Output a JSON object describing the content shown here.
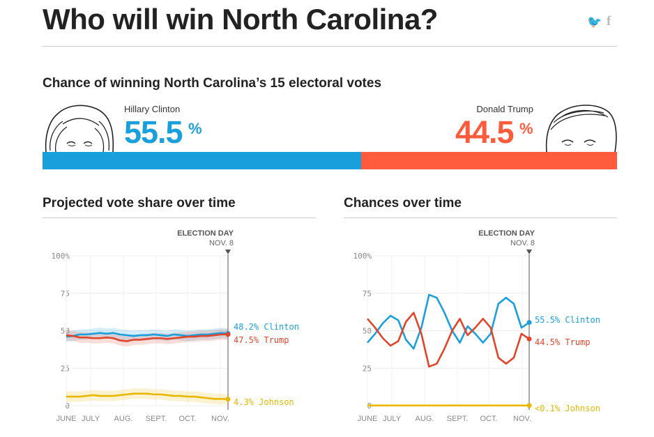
{
  "header": {
    "title": "Who will win North Carolina?",
    "twitter_glyph": "🐦",
    "facebook_glyph": "f"
  },
  "summary": {
    "heading": "Chance of winning North Carolina’s 15 electoral votes",
    "left": {
      "name": "Hillary Clinton",
      "value": "55.5",
      "unit": "%",
      "share": 0.555,
      "color": "#1a9fdd"
    },
    "right": {
      "name": "Donald Trump",
      "value": "44.5",
      "unit": "%",
      "share": 0.445,
      "color": "#ff5b3c"
    }
  },
  "colors": {
    "clinton": "#1a9fdd",
    "trump": "#e0452a",
    "johnson": "#e9b700",
    "grid": "#e8e8e8",
    "axis": "#888"
  },
  "chart_data": [
    {
      "type": "line",
      "title": "Projected vote share over time",
      "election_label": "ELECTION DAY",
      "election_date": "NOV. 8",
      "x_labels": [
        "JUNE",
        "JULY",
        "AUG.",
        "SEPT.",
        "OCT.",
        "NOV."
      ],
      "y_ticks": [
        "100%",
        "75",
        "50",
        "25",
        "0"
      ],
      "ylim": [
        0,
        100
      ],
      "series": [
        {
          "name": "Clinton",
          "color": "#1a9fdd",
          "end_label": "48.2% Clinton",
          "values": [
            46,
            46.5,
            47.5,
            47.5,
            48,
            48.5,
            48,
            48.5,
            47.5,
            47,
            46.5,
            47,
            47,
            47.5,
            47,
            46.5,
            47.5,
            47,
            46.5,
            47,
            47.5,
            47.5,
            48,
            48.5,
            48.2
          ]
        },
        {
          "name": "Trump",
          "color": "#e0452a",
          "end_label": "47.5% Trump",
          "values": [
            47,
            46.5,
            45.5,
            45.5,
            45,
            45,
            45.5,
            45,
            43.5,
            43,
            44,
            44,
            44.5,
            45,
            45,
            44.5,
            45,
            45.5,
            46,
            46,
            46.5,
            46.5,
            47,
            47.5,
            47.5
          ]
        },
        {
          "name": "Johnson",
          "color": "#e9b700",
          "end_label": "4.3% Johnson",
          "values": [
            6,
            6,
            6,
            6.5,
            7,
            6.5,
            6.5,
            6.5,
            7,
            7.5,
            8,
            8,
            8,
            7.5,
            7.5,
            7,
            6.5,
            6.5,
            6,
            6,
            5.5,
            5,
            4.5,
            4.5,
            4.3
          ]
        }
      ]
    },
    {
      "type": "line",
      "title": "Chances over time",
      "election_label": "ELECTION DAY",
      "election_date": "NOV. 8",
      "x_labels": [
        "JUNE",
        "JULY",
        "AUG.",
        "SEPT.",
        "OCT.",
        "NOV."
      ],
      "y_ticks": [
        "100%",
        "75",
        "50",
        "25",
        "0"
      ],
      "ylim": [
        0,
        100
      ],
      "series": [
        {
          "name": "Clinton",
          "color": "#1a9fdd",
          "end_label": "55.5% Clinton",
          "values": [
            42,
            48,
            55,
            60,
            57,
            44,
            38,
            52,
            74,
            72,
            62,
            50,
            42,
            53,
            48,
            42,
            48,
            68,
            72,
            68,
            52,
            55.5
          ]
        },
        {
          "name": "Trump",
          "color": "#e0452a",
          "end_label": "44.5% Trump",
          "values": [
            58,
            52,
            45,
            40,
            43,
            56,
            62,
            48,
            26,
            28,
            38,
            50,
            58,
            47,
            52,
            58,
            52,
            32,
            28,
            32,
            48,
            44.5
          ]
        },
        {
          "name": "Johnson",
          "color": "#e9b700",
          "end_label": "<0.1% Johnson",
          "values": [
            0.1,
            0.1,
            0.1,
            0.1,
            0.1,
            0.1,
            0.1,
            0.1,
            0.1,
            0.1,
            0.1,
            0.1,
            0.1,
            0.1,
            0.1,
            0.1,
            0.1,
            0.1,
            0.1,
            0.1,
            0.1,
            0.1
          ]
        }
      ]
    }
  ]
}
